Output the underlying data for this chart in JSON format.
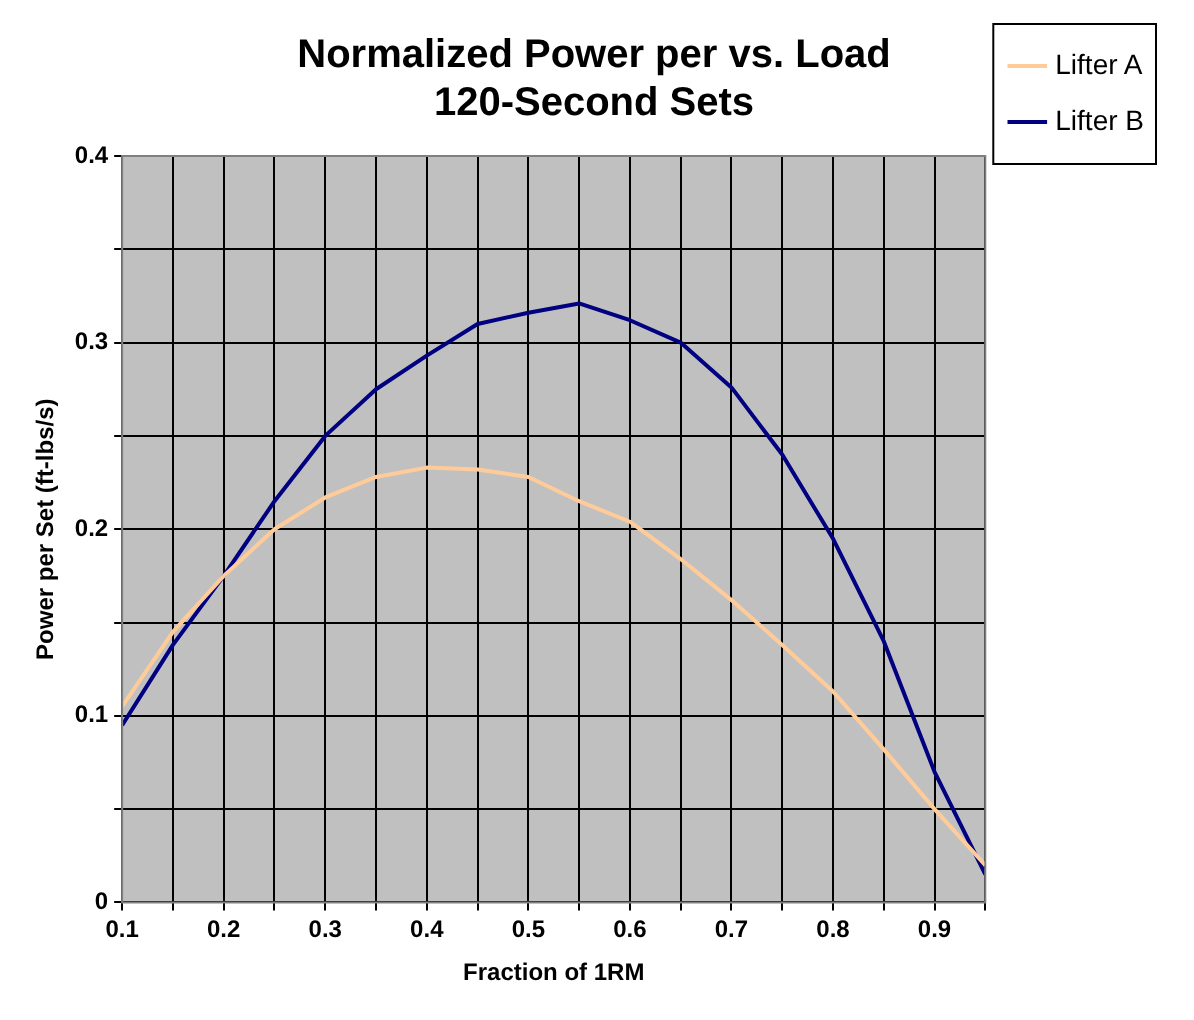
{
  "chart_data": {
    "type": "line",
    "title": "Normalized Power per vs. Load\n120-Second Sets",
    "xlabel": "Fraction of 1RM",
    "ylabel": "Power per Set (ft-lbs/s)",
    "x": [
      0.1,
      0.15,
      0.2,
      0.25,
      0.3,
      0.35,
      0.4,
      0.45,
      0.5,
      0.55,
      0.6,
      0.65,
      0.7,
      0.75,
      0.8,
      0.85,
      0.9,
      0.95
    ],
    "series": [
      {
        "name": "Lifter A",
        "color": "#ffcc99",
        "values": [
          0.105,
          0.145,
          0.175,
          0.2,
          0.217,
          0.228,
          0.233,
          0.232,
          0.228,
          0.215,
          0.204,
          0.184,
          0.162,
          0.138,
          0.113,
          0.082,
          0.05,
          0.02
        ]
      },
      {
        "name": "Lifter B",
        "color": "#000080",
        "values": [
          0.095,
          0.138,
          0.175,
          0.215,
          0.25,
          0.275,
          0.293,
          0.31,
          0.316,
          0.321,
          0.312,
          0.3,
          0.276,
          0.24,
          0.195,
          0.14,
          0.07,
          0.015
        ]
      }
    ],
    "xlim": [
      0.1,
      0.95
    ],
    "xticks": [
      0.1,
      {
        "value": 0.15,
        "label": null
      },
      0.2,
      {
        "value": 0.25,
        "label": null
      },
      0.3,
      {
        "value": 0.35,
        "label": null
      },
      0.4,
      {
        "value": 0.45,
        "label": null
      },
      0.5,
      {
        "value": 0.55,
        "label": null
      },
      0.6,
      {
        "value": 0.65,
        "label": null
      },
      0.7,
      {
        "value": 0.75,
        "label": null
      },
      0.8,
      {
        "value": 0.85,
        "label": null
      },
      0.9,
      {
        "value": 0.95,
        "label": null
      }
    ],
    "ylim": [
      0,
      0.4
    ],
    "yticks": [
      0,
      {
        "value": 0.05,
        "label": null
      },
      0.1,
      {
        "value": 0.15,
        "label": null
      },
      0.2,
      {
        "value": 0.25,
        "label": null
      },
      0.3,
      {
        "value": 0.35,
        "label": null
      },
      0.4
    ],
    "grid": true,
    "legend": "right",
    "marker": "none",
    "line_style": "solid"
  }
}
